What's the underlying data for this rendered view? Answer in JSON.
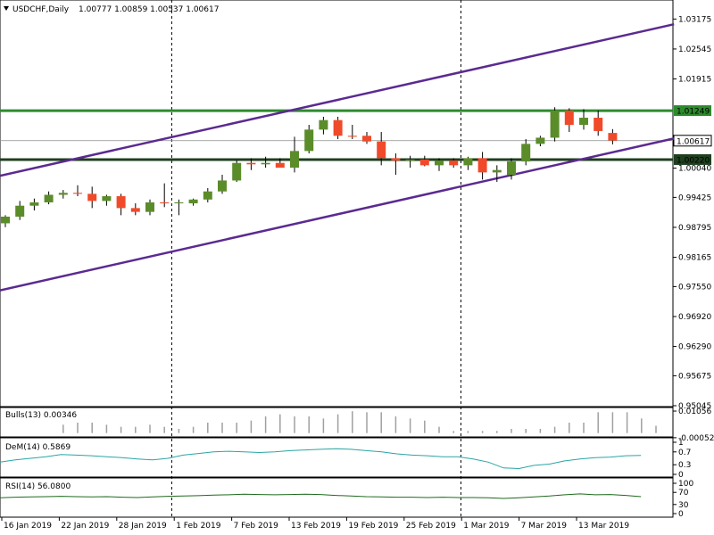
{
  "header": {
    "symbol": "USDCHF,Daily",
    "ohlc": "1.00777 1.00859 1.00537 1.00617"
  },
  "colors": {
    "bull": "#5b8c2a",
    "bear": "#f04a2a",
    "channel": "#5b2a91",
    "support": "#2d8a2d",
    "resistance": "#2d8a2d",
    "dem": "#2aa5a5",
    "rsi": "#1e6a1e",
    "bulls": "#a0a0a0"
  },
  "chart_data": {
    "type": "candlestick",
    "title": "USDCHF,Daily",
    "price_axis": {
      "ylim": [
        0.95045,
        1.035
      ],
      "ticks": [
        1.03175,
        1.02545,
        1.01915,
        1.0004,
        0.99425,
        0.98795,
        0.98165,
        0.9755,
        0.9692,
        0.9629,
        0.95675,
        0.95045
      ]
    },
    "date_labels": [
      "16 Jan 2019",
      "22 Jan 2019",
      "28 Jan 2019",
      "1 Feb 2019",
      "7 Feb 2019",
      "13 Feb 2019",
      "19 Feb 2019",
      "25 Feb 2019",
      "1 Mar 2019",
      "7 Mar 2019",
      "13 Mar 2019"
    ],
    "candles": [
      {
        "o": 0.9888,
        "h": 0.9905,
        "l": 0.988,
        "c": 0.9902
      },
      {
        "o": 0.9902,
        "h": 0.9935,
        "l": 0.9895,
        "c": 0.9925
      },
      {
        "o": 0.9925,
        "h": 0.994,
        "l": 0.9915,
        "c": 0.9932
      },
      {
        "o": 0.9932,
        "h": 0.9955,
        "l": 0.9928,
        "c": 0.9948
      },
      {
        "o": 0.9948,
        "h": 0.9958,
        "l": 0.994,
        "c": 0.9952
      },
      {
        "o": 0.9952,
        "h": 0.9968,
        "l": 0.9945,
        "c": 0.995
      },
      {
        "o": 0.995,
        "h": 0.9965,
        "l": 0.992,
        "c": 0.9935
      },
      {
        "o": 0.9935,
        "h": 0.9948,
        "l": 0.9925,
        "c": 0.9945
      },
      {
        "o": 0.9945,
        "h": 0.995,
        "l": 0.9905,
        "c": 0.992
      },
      {
        "o": 0.992,
        "h": 0.993,
        "l": 0.9905,
        "c": 0.9912
      },
      {
        "o": 0.9912,
        "h": 0.9938,
        "l": 0.9905,
        "c": 0.9932
      },
      {
        "o": 0.9932,
        "h": 0.9972,
        "l": 0.9922,
        "c": 0.993
      },
      {
        "o": 0.993,
        "h": 0.9938,
        "l": 0.9905,
        "c": 0.9932
      },
      {
        "o": 0.993,
        "h": 0.994,
        "l": 0.9925,
        "c": 0.9938
      },
      {
        "o": 0.9938,
        "h": 0.9962,
        "l": 0.9932,
        "c": 0.9955
      },
      {
        "o": 0.9955,
        "h": 0.999,
        "l": 0.995,
        "c": 0.9978
      },
      {
        "o": 0.9978,
        "h": 1.002,
        "l": 0.9975,
        "c": 1.0015
      },
      {
        "o": 1.0015,
        "h": 1.0025,
        "l": 1.0,
        "c": 1.0012
      },
      {
        "o": 1.0012,
        "h": 1.0028,
        "l": 1.0005,
        "c": 1.0015
      },
      {
        "o": 1.0015,
        "h": 1.0025,
        "l": 1.0005,
        "c": 1.0005
      },
      {
        "o": 1.0005,
        "h": 1.007,
        "l": 0.9995,
        "c": 1.004
      },
      {
        "o": 1.004,
        "h": 1.0095,
        "l": 1.0035,
        "c": 1.0085
      },
      {
        "o": 1.0085,
        "h": 1.0112,
        "l": 1.0075,
        "c": 1.0105
      },
      {
        "o": 1.0105,
        "h": 1.0112,
        "l": 1.0065,
        "c": 1.0072
      },
      {
        "o": 1.0072,
        "h": 1.0095,
        "l": 1.0065,
        "c": 1.007
      },
      {
        "o": 1.0072,
        "h": 1.008,
        "l": 1.0055,
        "c": 1.006
      },
      {
        "o": 1.006,
        "h": 1.008,
        "l": 1.001,
        "c": 1.0025
      },
      {
        "o": 1.0025,
        "h": 1.0035,
        "l": 0.999,
        "c": 1.002
      },
      {
        "o": 1.002,
        "h": 1.003,
        "l": 1.0005,
        "c": 1.0022
      },
      {
        "o": 1.0022,
        "h": 1.003,
        "l": 1.0008,
        "c": 1.001
      },
      {
        "o": 1.001,
        "h": 1.0025,
        "l": 0.9998,
        "c": 1.002
      },
      {
        "o": 1.002,
        "h": 1.0025,
        "l": 1.0005,
        "c": 1.001
      },
      {
        "o": 1.001,
        "h": 1.0028,
        "l": 1.0,
        "c": 1.0025
      },
      {
        "o": 1.0025,
        "h": 1.0038,
        "l": 0.998,
        "c": 0.9995
      },
      {
        "o": 0.9995,
        "h": 1.001,
        "l": 0.9975,
        "c": 1.0
      },
      {
        "o": 0.999,
        "h": 1.0025,
        "l": 0.998,
        "c": 1.0018
      },
      {
        "o": 1.0018,
        "h": 1.0065,
        "l": 1.001,
        "c": 1.0055
      },
      {
        "o": 1.0055,
        "h": 1.0072,
        "l": 1.005,
        "c": 1.0068
      },
      {
        "o": 1.0068,
        "h": 1.0132,
        "l": 1.006,
        "c": 1.0125
      },
      {
        "o": 1.0125,
        "h": 1.013,
        "l": 1.008,
        "c": 1.0095
      },
      {
        "o": 1.0095,
        "h": 1.0128,
        "l": 1.0085,
        "c": 1.011
      },
      {
        "o": 1.011,
        "h": 1.0125,
        "l": 1.0072,
        "c": 1.0082
      },
      {
        "o": 1.0078,
        "h": 1.0086,
        "l": 1.0054,
        "c": 1.0062
      }
    ],
    "levels": [
      {
        "name": "resistance",
        "value": 1.01249,
        "label": "1.01249"
      },
      {
        "name": "support",
        "value": 1.0022,
        "label": "1.00220"
      },
      {
        "name": "current",
        "value": 1.00617,
        "label": "1.00617"
      }
    ],
    "channel_lines": [
      {
        "name": "upper-channel",
        "from": {
          "bar": 0,
          "price": 0.9988
        },
        "to": {
          "bar": 46,
          "price": 1.03065
        }
      },
      {
        "name": "lower-channel",
        "from": {
          "bar": 0,
          "price": 0.9747
        },
        "to": {
          "bar": 46,
          "price": 1.00665
        }
      }
    ],
    "vlines_at_bar": [
      12,
      32
    ],
    "indicators": {
      "bulls": {
        "title": "Bulls(13) 0.00346",
        "ticks": [
          "0.01056",
          "-0.00052"
        ],
        "ylim": [
          -0.001,
          0.011
        ],
        "values": [
          0.0,
          0.004,
          0.005,
          0.005,
          0.004,
          0.003,
          0.003,
          0.004,
          0.003,
          0.002,
          0.003,
          0.005,
          0.005,
          0.005,
          0.006,
          0.008,
          0.009,
          0.008,
          0.008,
          0.007,
          0.009,
          0.0105,
          0.01,
          0.01,
          0.008,
          0.007,
          0.006,
          0.003,
          0.001,
          0.001,
          0.001,
          0.001,
          0.002,
          0.002,
          0.002,
          0.003,
          0.005,
          0.005,
          0.01,
          0.01,
          0.01,
          0.007,
          0.0035
        ]
      },
      "dem": {
        "title": "DeM(14) 0.5869",
        "ticks": [
          "1",
          "0.7",
          "0.3",
          "0"
        ],
        "ylim": [
          0,
          1
        ],
        "values": [
          0.38,
          0.45,
          0.5,
          0.55,
          0.62,
          0.6,
          0.58,
          0.55,
          0.52,
          0.48,
          0.45,
          0.5,
          0.6,
          0.65,
          0.7,
          0.72,
          0.7,
          0.68,
          0.7,
          0.74,
          0.76,
          0.78,
          0.8,
          0.78,
          0.74,
          0.7,
          0.64,
          0.6,
          0.58,
          0.55,
          0.55,
          0.48,
          0.38,
          0.2,
          0.18,
          0.28,
          0.32,
          0.42,
          0.48,
          0.52,
          0.54,
          0.58,
          0.59
        ]
      },
      "rsi": {
        "title": "RSI(14) 56.0800",
        "ticks": [
          "100",
          "70",
          "30",
          "0"
        ],
        "ylim": [
          0,
          100
        ],
        "values": [
          52,
          54,
          55,
          56,
          57,
          56,
          55,
          56,
          54,
          53,
          55,
          57,
          58,
          59,
          61,
          62,
          64,
          63,
          62,
          63,
          64,
          63,
          60,
          58,
          56,
          55,
          54,
          54,
          53,
          54,
          53,
          53,
          52,
          50,
          52,
          55,
          58,
          62,
          65,
          62,
          63,
          60,
          56
        ]
      }
    }
  }
}
